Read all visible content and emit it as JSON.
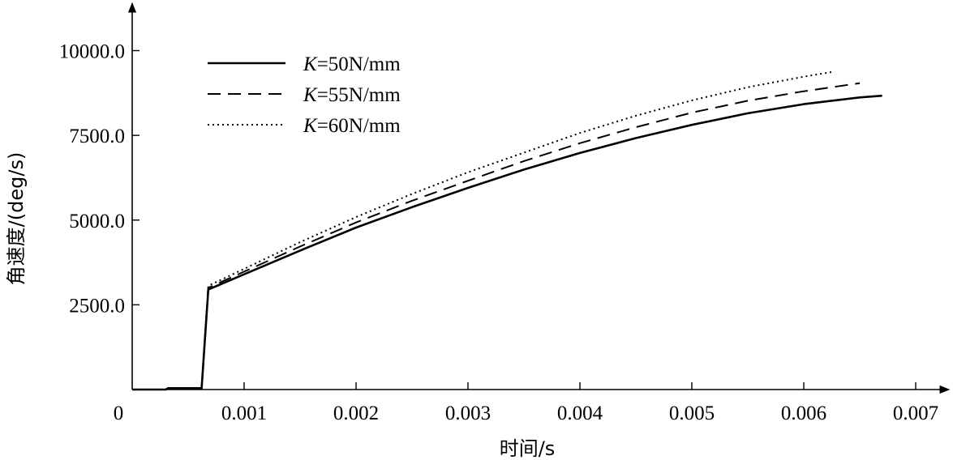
{
  "chart_data": {
    "type": "line",
    "title": "",
    "xlabel": "时间/s",
    "ylabel": "角速度/(deg/s)",
    "xlim": [
      0,
      0.0072
    ],
    "ylim": [
      0,
      10600
    ],
    "origin_label": "0",
    "x_ticks": [
      {
        "value": 0.001,
        "label": "0.001"
      },
      {
        "value": 0.002,
        "label": "0.002"
      },
      {
        "value": 0.003,
        "label": "0.003"
      },
      {
        "value": 0.004,
        "label": "0.004"
      },
      {
        "value": 0.005,
        "label": "0.005"
      },
      {
        "value": 0.006,
        "label": "0.006"
      },
      {
        "value": 0.007,
        "label": "0.007"
      }
    ],
    "y_ticks": [
      {
        "value": 2500,
        "label": "2500.0"
      },
      {
        "value": 5000,
        "label": "5000.0"
      },
      {
        "value": 7500,
        "label": "7500.0"
      },
      {
        "value": 10000,
        "label": "10000.0"
      }
    ],
    "grid": false,
    "legend_position": "top-left",
    "series": [
      {
        "name": "K=50N/mm",
        "label_italic": "K",
        "label_rest": "=50N/mm",
        "style": "solid",
        "x": [
          0,
          0.0003,
          0.00032,
          0.00062,
          0.00068,
          0.001,
          0.0015,
          0.002,
          0.0025,
          0.003,
          0.0035,
          0.004,
          0.0045,
          0.005,
          0.0055,
          0.006,
          0.0065,
          0.0067
        ],
        "y": [
          0,
          0,
          40,
          40,
          2950,
          3400,
          4100,
          4780,
          5380,
          5950,
          6490,
          6980,
          7420,
          7810,
          8150,
          8420,
          8620,
          8670
        ]
      },
      {
        "name": "K=55N/mm",
        "label_italic": "K",
        "label_rest": "=55N/mm",
        "style": "dashed",
        "x": [
          0,
          0.0003,
          0.00032,
          0.00062,
          0.00068,
          0.001,
          0.0015,
          0.002,
          0.0025,
          0.003,
          0.0035,
          0.004,
          0.0045,
          0.005,
          0.0055,
          0.006,
          0.0065
        ],
        "y": [
          0,
          0,
          40,
          40,
          3000,
          3480,
          4220,
          4930,
          5570,
          6160,
          6740,
          7270,
          7740,
          8170,
          8520,
          8800,
          9040
        ]
      },
      {
        "name": "K=60N/mm",
        "label_italic": "K",
        "label_rest": "=60N/mm",
        "style": "dotted",
        "x": [
          0,
          0.0003,
          0.00032,
          0.00062,
          0.00068,
          0.001,
          0.0015,
          0.002,
          0.0025,
          0.003,
          0.0035,
          0.004,
          0.0045,
          0.005,
          0.0055,
          0.006,
          0.00625
        ],
        "y": [
          0,
          0,
          40,
          40,
          3060,
          3560,
          4350,
          5090,
          5770,
          6410,
          6990,
          7570,
          8080,
          8530,
          8920,
          9230,
          9370
        ]
      }
    ]
  }
}
